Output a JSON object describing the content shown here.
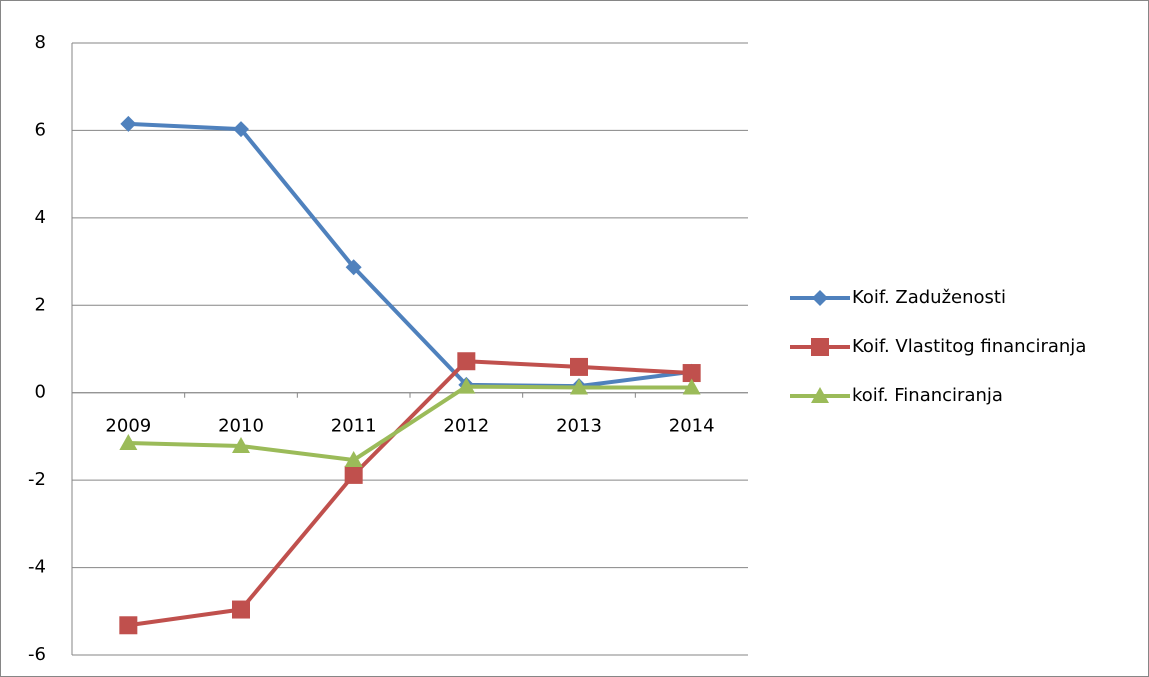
{
  "chart_data": {
    "type": "line",
    "categories": [
      "2009",
      "2010",
      "2011",
      "2012",
      "2013",
      "2014"
    ],
    "series": [
      {
        "name": "Koif. Zaduženosti",
        "color": "#4f81bd",
        "marker": "diamond",
        "values": [
          6.15,
          6.03,
          2.87,
          0.18,
          0.15,
          0.48
        ]
      },
      {
        "name": "Koif. Vlastitog financiranja",
        "color": "#c0504d",
        "marker": "square",
        "values": [
          -5.32,
          -4.96,
          -1.88,
          0.72,
          0.59,
          0.45
        ]
      },
      {
        "name": "koif. Financiranja",
        "color": "#9bbb59",
        "marker": "triangle",
        "values": [
          -1.15,
          -1.22,
          -1.54,
          0.14,
          0.12,
          0.12
        ]
      }
    ],
    "ylim": [
      -6,
      8
    ],
    "yticks": [
      -6,
      -4,
      -2,
      0,
      2,
      4,
      6,
      8
    ],
    "grid": true,
    "legend": "right"
  }
}
